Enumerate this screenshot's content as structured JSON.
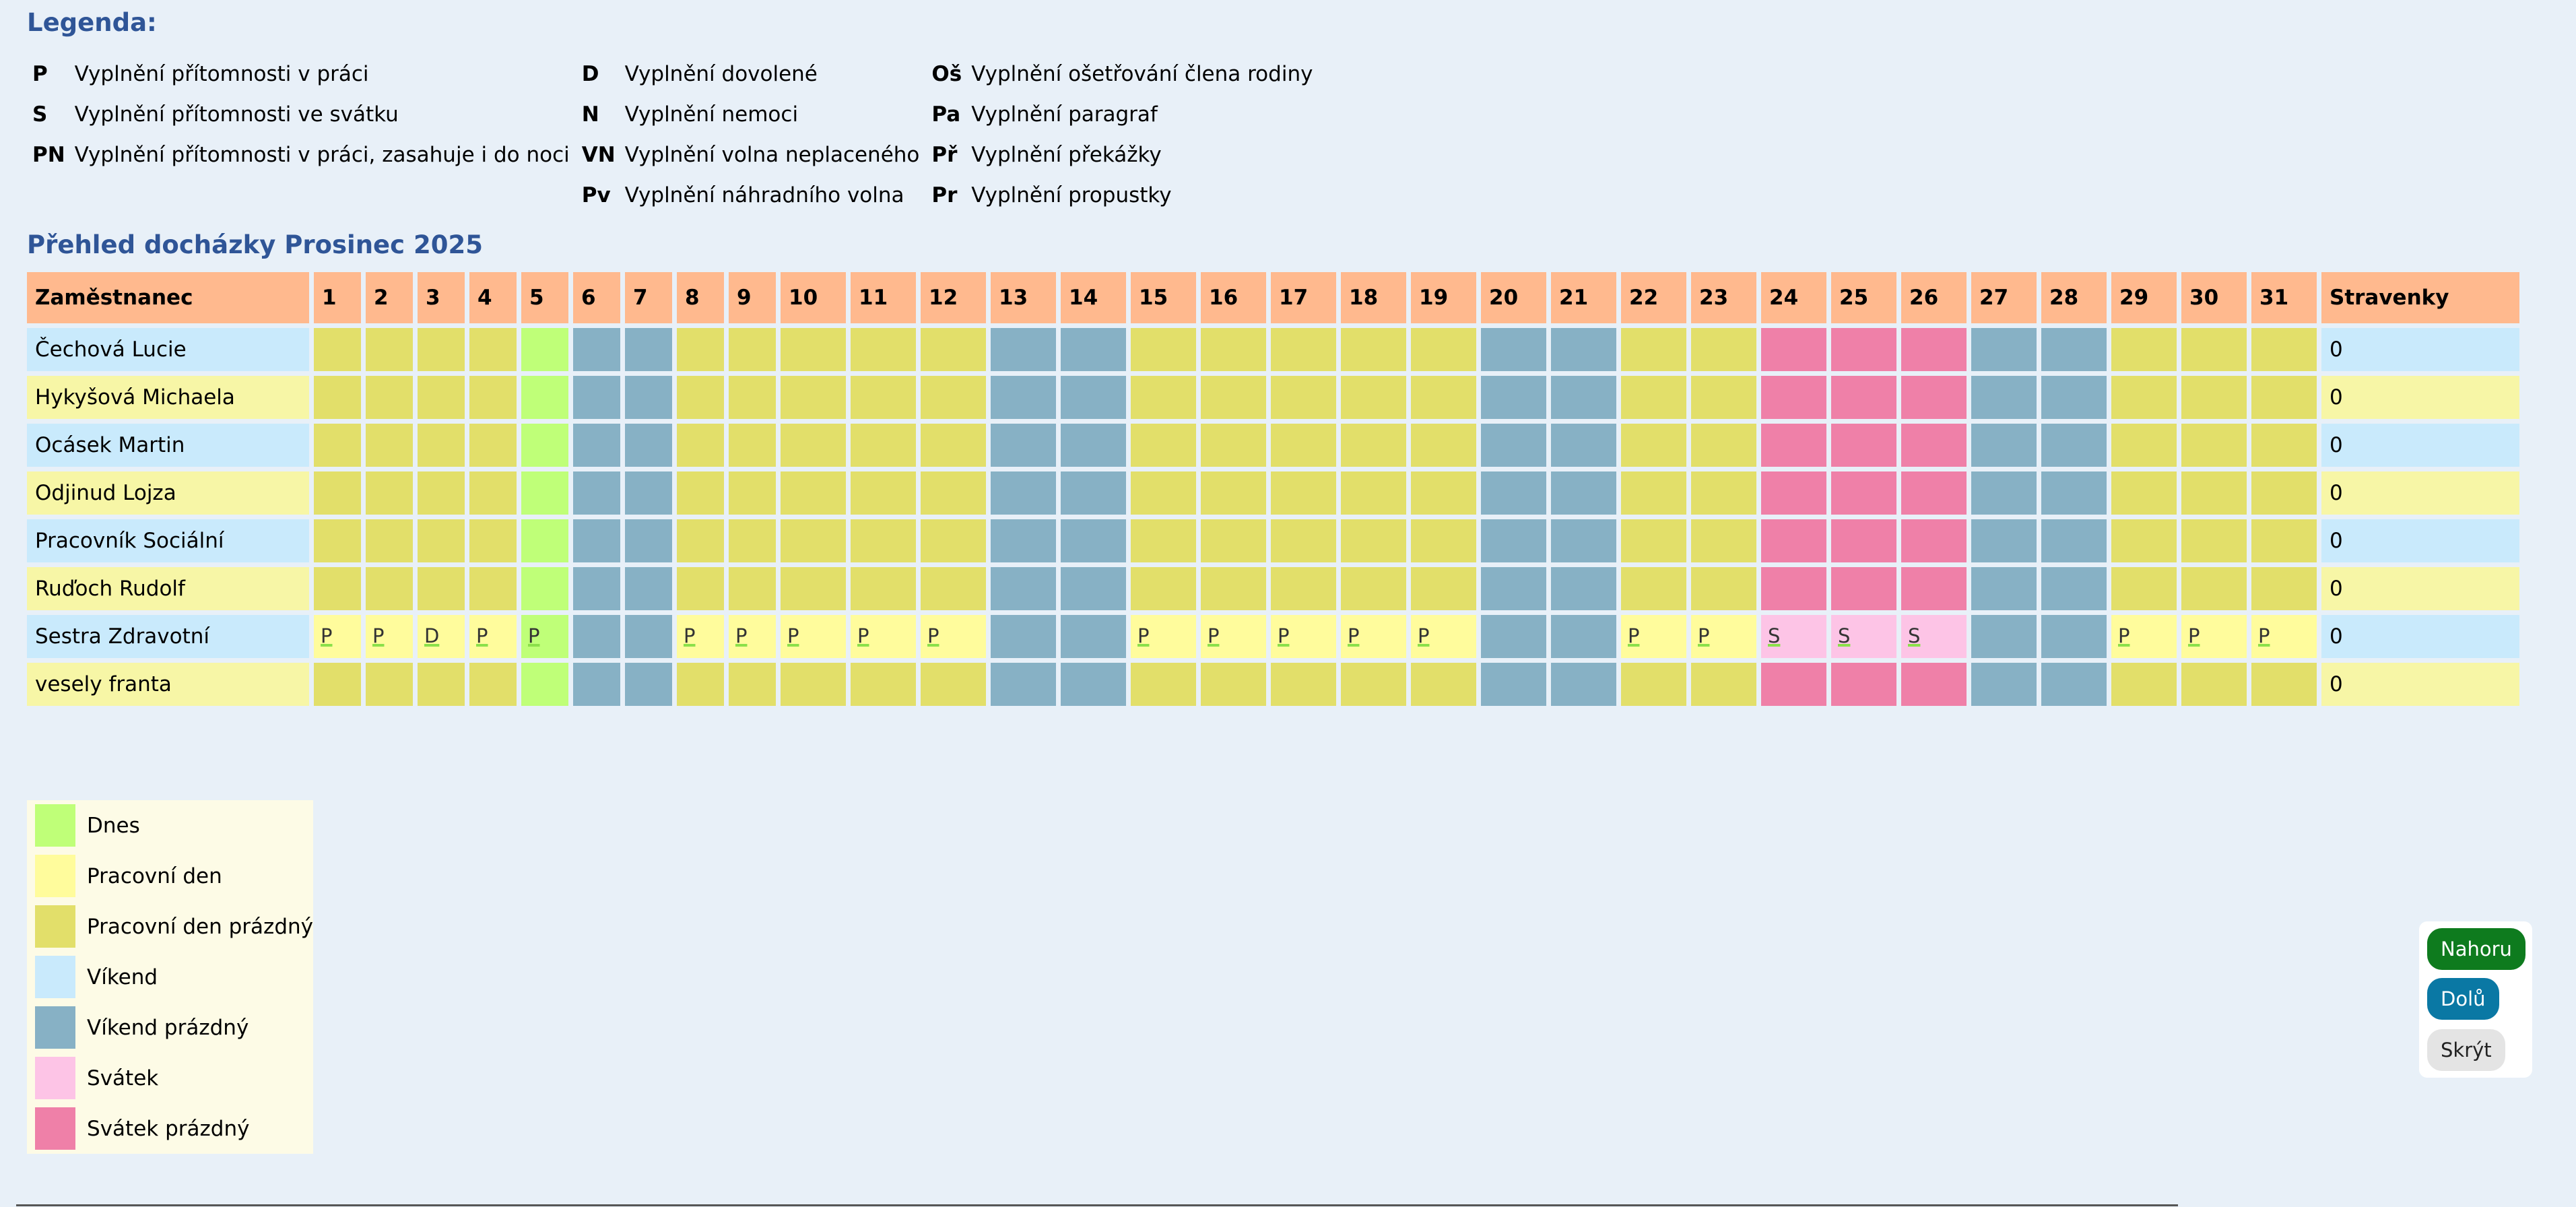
{
  "legend": {
    "title": "Legenda:",
    "rows": [
      [
        {
          "code": "P",
          "desc": "Vyplnění přítomnosti v práci"
        },
        {
          "code": "D",
          "desc": "Vyplnění dovolené"
        },
        {
          "code": "Oš",
          "desc": "Vyplnění ošetřování člena rodiny"
        }
      ],
      [
        {
          "code": "S",
          "desc": "Vyplnění přítomnosti ve svátku"
        },
        {
          "code": "N",
          "desc": "Vyplnění nemoci"
        },
        {
          "code": "Pa",
          "desc": "Vyplnění paragraf"
        }
      ],
      [
        {
          "code": "PN",
          "desc": "Vyplnění přítomnosti v práci, zasahuje i do noci"
        },
        {
          "code": "VN",
          "desc": "Vyplnění volna neplaceného"
        },
        {
          "code": "Př",
          "desc": "Vyplnění překážky"
        }
      ],
      [
        {
          "code": "",
          "desc": ""
        },
        {
          "code": "Pv",
          "desc": "Vyplnění náhradního volna"
        },
        {
          "code": "Pr",
          "desc": "Vyplnění propustky"
        }
      ]
    ]
  },
  "attendance": {
    "title": "Přehled docházky Prosinec 2025",
    "header_employee": "Zaměstnanec",
    "header_stravenky": "Stravenky",
    "days": [
      "1",
      "2",
      "3",
      "4",
      "5",
      "6",
      "7",
      "8",
      "9",
      "10",
      "11",
      "12",
      "13",
      "14",
      "15",
      "16",
      "17",
      "18",
      "19",
      "20",
      "21",
      "22",
      "23",
      "24",
      "25",
      "26",
      "27",
      "28",
      "29",
      "30",
      "31"
    ],
    "day_types": [
      "w",
      "w",
      "w",
      "w",
      "t",
      "e",
      "e",
      "w",
      "w",
      "w",
      "w",
      "w",
      "e",
      "e",
      "w",
      "w",
      "w",
      "w",
      "w",
      "e",
      "e",
      "w",
      "w",
      "h",
      "h",
      "h",
      "e",
      "e",
      "w",
      "w",
      "w"
    ],
    "employees": [
      {
        "name": "Čechová Lucie",
        "stravenky": "0",
        "marks": {}
      },
      {
        "name": "Hykyšová Michaela",
        "stravenky": "0",
        "marks": {}
      },
      {
        "name": "Ocásek Martin",
        "stravenky": "0",
        "marks": {}
      },
      {
        "name": "Odjinud Lojza",
        "stravenky": "0",
        "marks": {}
      },
      {
        "name": "Pracovník Sociální",
        "stravenky": "0",
        "marks": {}
      },
      {
        "name": "Ruďoch Rudolf",
        "stravenky": "0",
        "marks": {}
      },
      {
        "name": "Sestra Zdravotní",
        "stravenky": "0",
        "marks": {
          "1": "P",
          "2": "P",
          "3": "D",
          "4": "P",
          "5": "P",
          "8": "P",
          "9": "P",
          "10": "P",
          "11": "P",
          "12": "P",
          "15": "P",
          "16": "P",
          "17": "P",
          "18": "P",
          "19": "P",
          "22": "P",
          "23": "P",
          "24": "S",
          "25": "S",
          "26": "S",
          "29": "P",
          "30": "P",
          "31": "P"
        }
      },
      {
        "name": "vesely franta",
        "stravenky": "0",
        "marks": {}
      }
    ]
  },
  "color_legend": [
    {
      "label": "Dnes",
      "color": "#bfff78"
    },
    {
      "label": "Pracovní den",
      "color": "#fffc9c"
    },
    {
      "label": "Pracovní den prázdný",
      "color": "#e2df6a"
    },
    {
      "label": "Víkend",
      "color": "#c9eafc"
    },
    {
      "label": "Víkend prázdný",
      "color": "#87b1c5"
    },
    {
      "label": "Svátek",
      "color": "#fdc4e6"
    },
    {
      "label": "Svátek prázdný",
      "color": "#ef80a8"
    }
  ],
  "nav": {
    "up": "Nahoru",
    "down": "Dolů",
    "hide": "Skrýt"
  }
}
